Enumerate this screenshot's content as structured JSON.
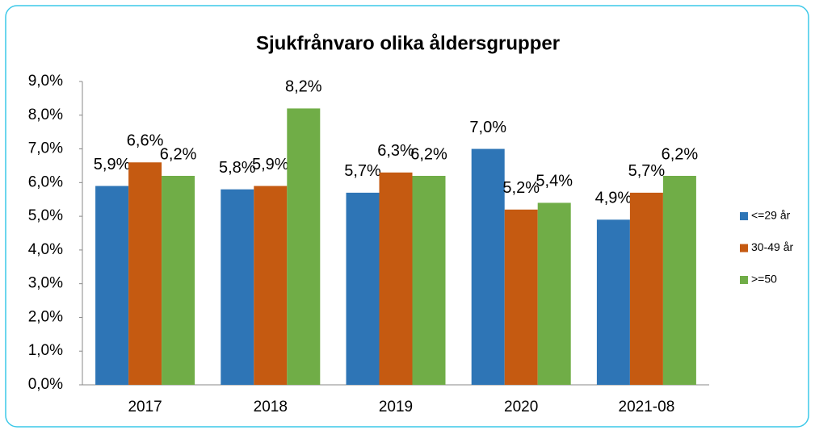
{
  "chart_data": {
    "type": "bar",
    "title": "Sjukfrånvaro olika åldersgrupper",
    "categories": [
      "2017",
      "2018",
      "2019",
      "2020",
      "2021-08"
    ],
    "series": [
      {
        "name": "<=29 år",
        "color": "#2e75b6",
        "values": [
          5.9,
          5.8,
          5.7,
          7.0,
          4.9
        ],
        "value_labels": [
          "5,9%",
          "5,8%",
          "5,7%",
          "7,0%",
          "4,9%"
        ]
      },
      {
        "name": "30-49 år",
        "color": "#c55a11",
        "values": [
          6.6,
          5.9,
          6.3,
          5.2,
          5.7
        ],
        "value_labels": [
          "6,6%",
          "5,9%",
          "6,3%",
          "5,2%",
          "5,7%"
        ]
      },
      {
        "name": ">=50",
        "color": "#70ad47",
        "values": [
          6.2,
          8.2,
          6.2,
          5.4,
          6.2
        ],
        "value_labels": [
          "6,2%",
          "8,2%",
          "6,2%",
          "5,4%",
          "6,2%"
        ]
      }
    ],
    "ylim": [
      0,
      9
    ],
    "yticks": [
      {
        "value": 0,
        "label": "0,0%"
      },
      {
        "value": 1,
        "label": "1,0%"
      },
      {
        "value": 2,
        "label": "2,0%"
      },
      {
        "value": 3,
        "label": "3,0%"
      },
      {
        "value": 4,
        "label": "4,0%"
      },
      {
        "value": 5,
        "label": "5,0%"
      },
      {
        "value": 6,
        "label": "6,0%"
      },
      {
        "value": 7,
        "label": "7,0%"
      },
      {
        "value": 8,
        "label": "8,0%"
      },
      {
        "value": 9,
        "label": "9,0%"
      }
    ],
    "grid": false,
    "legend": "right"
  }
}
